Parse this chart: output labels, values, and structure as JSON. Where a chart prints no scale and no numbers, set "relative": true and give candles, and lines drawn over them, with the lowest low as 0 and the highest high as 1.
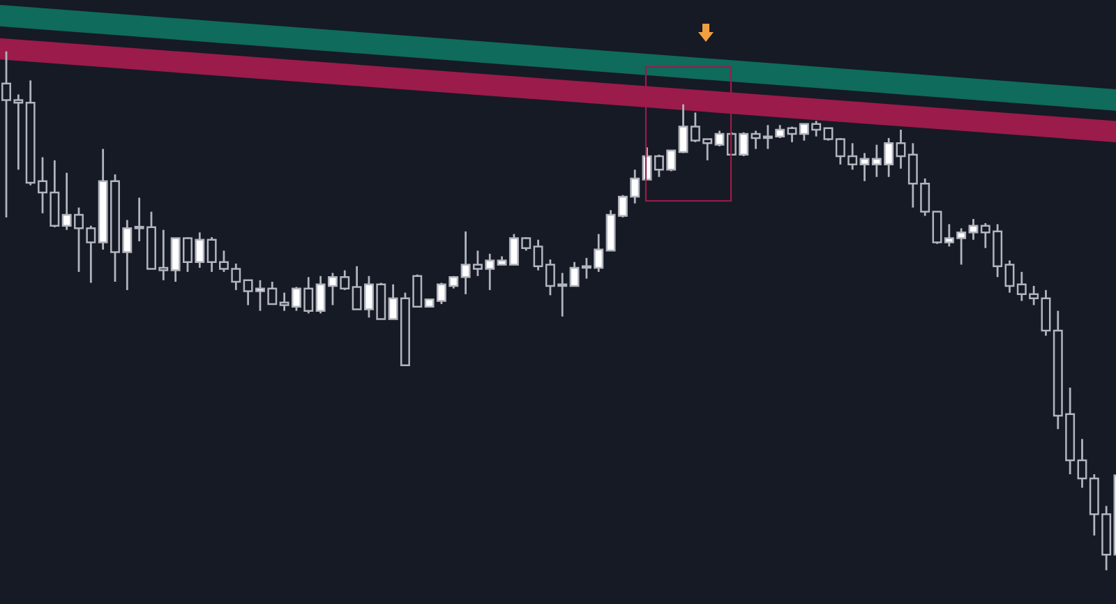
{
  "chart_data": {
    "type": "candlestick",
    "relative": true,
    "categories": [
      null,
      null,
      null,
      null,
      null,
      null,
      null,
      null,
      null,
      null,
      null,
      null,
      null,
      null,
      null,
      null,
      null,
      null,
      null,
      null,
      null,
      null,
      null,
      null,
      null,
      null,
      null,
      null,
      null,
      null,
      null,
      null,
      null,
      null,
      null,
      null,
      null,
      null,
      null,
      null,
      null,
      null,
      null,
      null,
      null,
      null,
      null,
      null,
      null,
      null,
      null,
      null,
      null,
      null,
      null,
      null,
      null,
      null,
      null,
      null,
      null,
      null,
      null,
      null,
      null,
      null,
      null,
      null,
      null,
      null,
      null,
      null,
      null,
      null,
      null,
      null,
      null,
      null,
      null,
      null,
      null,
      null,
      null,
      null,
      null,
      null,
      null,
      null,
      null,
      null,
      null,
      null,
      null
    ],
    "ohlc": [
      [
        0.938,
        1.0,
        0.68,
        0.906
      ],
      [
        0.906,
        0.917,
        0.772,
        0.901
      ],
      [
        0.901,
        0.944,
        0.742,
        0.747
      ],
      [
        0.75,
        0.796,
        0.688,
        0.728
      ],
      [
        0.728,
        0.79,
        0.661,
        0.664
      ],
      [
        0.664,
        0.766,
        0.656,
        0.685
      ],
      [
        0.685,
        0.699,
        0.575,
        0.659
      ],
      [
        0.659,
        0.664,
        0.554,
        0.632
      ],
      [
        0.632,
        0.812,
        0.618,
        0.75
      ],
      [
        0.75,
        0.763,
        0.556,
        0.613
      ],
      [
        0.613,
        0.675,
        0.54,
        0.659
      ],
      [
        0.659,
        0.718,
        0.634,
        0.661
      ],
      [
        0.661,
        0.691,
        0.581,
        0.581
      ],
      [
        0.583,
        0.656,
        0.559,
        0.578
      ],
      [
        0.578,
        0.64,
        0.556,
        0.64
      ],
      [
        0.64,
        0.642,
        0.575,
        0.594
      ],
      [
        0.594,
        0.651,
        0.583,
        0.637
      ],
      [
        0.637,
        0.642,
        0.575,
        0.594
      ],
      [
        0.594,
        0.616,
        0.575,
        0.581
      ],
      [
        0.581,
        0.591,
        0.54,
        0.556
      ],
      [
        0.559,
        0.559,
        0.511,
        0.538
      ],
      [
        0.538,
        0.559,
        0.5,
        0.543
      ],
      [
        0.543,
        0.556,
        0.513,
        0.513
      ],
      [
        0.516,
        0.535,
        0.5,
        0.511
      ],
      [
        0.508,
        0.546,
        0.5,
        0.543
      ],
      [
        0.543,
        0.565,
        0.495,
        0.5
      ],
      [
        0.5,
        0.567,
        0.495,
        0.551
      ],
      [
        0.548,
        0.573,
        0.511,
        0.565
      ],
      [
        0.565,
        0.578,
        0.54,
        0.543
      ],
      [
        0.546,
        0.586,
        0.503,
        0.503
      ],
      [
        0.503,
        0.567,
        0.487,
        0.551
      ],
      [
        0.551,
        0.554,
        0.484,
        0.484
      ],
      [
        0.484,
        0.551,
        0.484,
        0.524
      ],
      [
        0.524,
        0.535,
        0.395,
        0.395
      ],
      [
        0.567,
        0.57,
        0.508,
        0.508
      ],
      [
        0.508,
        0.522,
        0.508,
        0.522
      ],
      [
        0.519,
        0.554,
        0.513,
        0.551
      ],
      [
        0.548,
        0.567,
        0.543,
        0.565
      ],
      [
        0.565,
        0.653,
        0.532,
        0.589
      ],
      [
        0.589,
        0.616,
        0.567,
        0.581
      ],
      [
        0.581,
        0.61,
        0.54,
        0.597
      ],
      [
        0.589,
        0.605,
        0.589,
        0.597
      ],
      [
        0.589,
        0.648,
        0.589,
        0.64
      ],
      [
        0.64,
        0.642,
        0.616,
        0.621
      ],
      [
        0.624,
        0.637,
        0.578,
        0.586
      ],
      [
        0.589,
        0.599,
        0.53,
        0.548
      ],
      [
        0.548,
        0.573,
        0.489,
        0.551
      ],
      [
        0.548,
        0.594,
        0.548,
        0.583
      ],
      [
        0.583,
        0.602,
        0.562,
        0.586
      ],
      [
        0.583,
        0.648,
        0.575,
        0.618
      ],
      [
        0.616,
        0.694,
        0.616,
        0.685
      ],
      [
        0.683,
        0.723,
        0.68,
        0.72
      ],
      [
        0.72,
        0.772,
        0.707,
        0.755
      ],
      [
        0.753,
        0.815,
        0.753,
        0.798
      ],
      [
        0.798,
        0.801,
        0.758,
        0.772
      ],
      [
        0.772,
        0.809,
        0.769,
        0.809
      ],
      [
        0.806,
        0.898,
        0.804,
        0.855
      ],
      [
        0.855,
        0.882,
        0.825,
        0.828
      ],
      [
        0.831,
        0.831,
        0.79,
        0.823
      ],
      [
        0.82,
        0.847,
        0.817,
        0.841
      ],
      [
        0.841,
        0.844,
        0.801,
        0.801
      ],
      [
        0.801,
        0.844,
        0.798,
        0.841
      ],
      [
        0.841,
        0.847,
        0.812,
        0.833
      ],
      [
        0.833,
        0.858,
        0.812,
        0.836
      ],
      [
        0.836,
        0.858,
        0.833,
        0.849
      ],
      [
        0.852,
        0.855,
        0.825,
        0.841
      ],
      [
        0.841,
        0.86,
        0.828,
        0.86
      ],
      [
        0.86,
        0.866,
        0.836,
        0.849
      ],
      [
        0.852,
        0.852,
        0.828,
        0.831
      ],
      [
        0.831,
        0.833,
        0.782,
        0.798
      ],
      [
        0.798,
        0.823,
        0.772,
        0.782
      ],
      [
        0.782,
        0.804,
        0.75,
        0.793
      ],
      [
        0.782,
        0.82,
        0.758,
        0.793
      ],
      [
        0.782,
        0.833,
        0.758,
        0.823
      ],
      [
        0.823,
        0.849,
        0.774,
        0.798
      ],
      [
        0.801,
        0.823,
        0.699,
        0.745
      ],
      [
        0.745,
        0.755,
        0.683,
        0.691
      ],
      [
        0.691,
        0.691,
        0.629,
        0.632
      ],
      [
        0.632,
        0.667,
        0.624,
        0.64
      ],
      [
        0.64,
        0.659,
        0.589,
        0.651
      ],
      [
        0.651,
        0.677,
        0.637,
        0.664
      ],
      [
        0.664,
        0.669,
        0.621,
        0.651
      ],
      [
        0.653,
        0.667,
        0.565,
        0.586
      ],
      [
        0.589,
        0.597,
        0.535,
        0.548
      ],
      [
        0.551,
        0.575,
        0.519,
        0.532
      ],
      [
        0.532,
        0.548,
        0.511,
        0.524
      ],
      [
        0.524,
        0.54,
        0.452,
        0.462
      ],
      [
        0.462,
        0.5,
        0.272,
        0.298
      ],
      [
        0.301,
        0.352,
        0.185,
        0.212
      ],
      [
        0.212,
        0.253,
        0.159,
        0.177
      ],
      [
        0.177,
        0.185,
        0.067,
        0.108
      ],
      [
        0.108,
        0.124,
        0.0,
        0.03
      ],
      [
        0.03,
        0.183,
        0.03,
        0.183
      ]
    ],
    "series": [
      {
        "type": "line",
        "values": [
          1.068,
          null,
          null,
          null,
          null,
          null,
          null,
          null,
          null,
          null,
          null,
          null,
          null,
          null,
          null,
          null,
          null,
          null,
          null,
          null,
          null,
          null,
          null,
          null,
          null,
          null,
          null,
          null,
          null,
          null,
          null,
          null,
          null,
          null,
          null,
          null,
          null,
          null,
          null,
          null,
          null,
          null,
          null,
          null,
          null,
          null,
          null,
          null,
          null,
          null,
          null,
          null,
          null,
          null,
          null,
          null,
          null,
          null,
          null,
          null,
          null,
          null,
          null,
          null,
          null,
          null,
          null,
          null,
          null,
          null,
          null,
          null,
          null,
          null,
          null,
          null,
          null,
          null,
          null,
          null,
          null,
          null,
          null,
          null,
          null,
          null,
          null,
          null,
          null,
          null,
          null,
          null,
          0.906
        ],
        "color": "#0f6b5c"
      },
      {
        "type": "line",
        "values": [
          1.004,
          null,
          null,
          null,
          null,
          null,
          null,
          null,
          null,
          null,
          null,
          null,
          null,
          null,
          null,
          null,
          null,
          null,
          null,
          null,
          null,
          null,
          null,
          null,
          null,
          null,
          null,
          null,
          null,
          null,
          null,
          null,
          null,
          null,
          null,
          null,
          null,
          null,
          null,
          null,
          null,
          null,
          null,
          null,
          null,
          null,
          null,
          null,
          null,
          null,
          null,
          null,
          null,
          null,
          null,
          null,
          null,
          null,
          null,
          null,
          null,
          null,
          null,
          null,
          null,
          null,
          null,
          null,
          null,
          null,
          null,
          null,
          null,
          null,
          null,
          null,
          null,
          null,
          null,
          null,
          null,
          null,
          null,
          null,
          null,
          null,
          null,
          null,
          null,
          null,
          null,
          null,
          0.845
        ],
        "color": "#9b1b4a"
      }
    ]
  }
}
